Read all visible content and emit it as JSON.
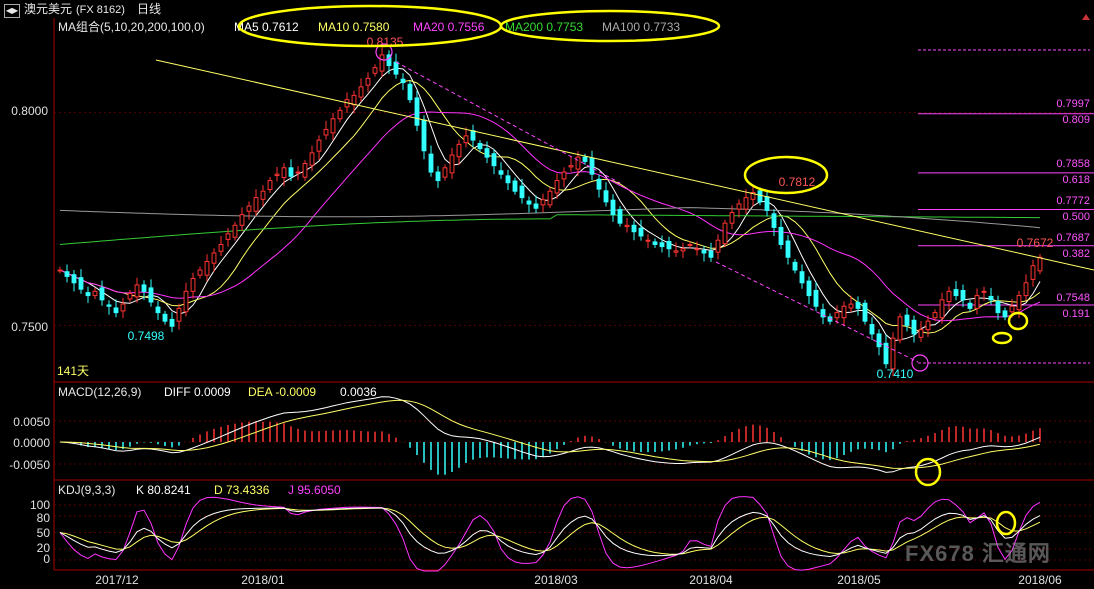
{
  "window": {
    "instrument": "澳元美元",
    "code": "(FX 8162)",
    "period": "日线"
  },
  "colors": {
    "up": "#ff3333",
    "down": "#33ffff",
    "ma5": "#ffffff",
    "ma10": "#ffff66",
    "ma20": "#ff33ff",
    "ma200": "#33cc33",
    "ma100": "#999999",
    "annot": "#ffff00"
  },
  "price_panel": {
    "legend_title": "MA组合(5,10,20,200,100,0)",
    "ma5": "MA5 0.7612",
    "ma10": "MA10 0.7580",
    "ma20": "MA20 0.7556",
    "ma200": "MA200 0.7753",
    "ma100": "MA100 0.7733",
    "bars_count": "141天",
    "y_ticks": [
      "0.8000",
      "0.7500"
    ],
    "high_label": "0.8135",
    "low1_label": "0.7498",
    "low2_label": "0.7410",
    "mid_high_label": "0.7812",
    "last_high_label": "0.7672"
  },
  "fib_levels": [
    {
      "price": "0.7997",
      "ratio": "0.809"
    },
    {
      "price": "0.7858",
      "ratio": "0.618"
    },
    {
      "price": "0.7772",
      "ratio": "0.500"
    },
    {
      "price": "0.7687",
      "ratio": "0.382"
    },
    {
      "price": "0.7548",
      "ratio": "0.191"
    }
  ],
  "macd_panel": {
    "title": "MACD(12,26,9)",
    "diff": "DIFF 0.0009",
    "dea": "DEA -0.0009",
    "macd": "0.0036",
    "y_ticks": [
      "0.0050",
      "0.0000",
      "-0.0050"
    ]
  },
  "kdj_panel": {
    "title": "KDJ(9,3,3)",
    "k": "K 80.8241",
    "d": "D 73.4336",
    "j": "J 95.6050",
    "y_ticks": [
      "100",
      "80",
      "50",
      "20",
      "0"
    ]
  },
  "x_axis": [
    "2017/12",
    "2018/01",
    "2018/03",
    "2018/04",
    "2018/05",
    "2018/06"
  ],
  "watermark": "FX678 汇通网",
  "chart_data": {
    "type": "candlestick",
    "title": "澳元美元(FX 8162) 日线",
    "ylim": [
      0.74,
      0.817
    ],
    "x_ticks": [
      "2017/12",
      "2018/01",
      "2018/03",
      "2018/04",
      "2018/05",
      "2018/06"
    ],
    "key_levels": [
      {
        "label": "0.8135",
        "value": 0.8135
      },
      {
        "label": "0.7812",
        "value": 0.7812
      },
      {
        "label": "0.7672",
        "value": 0.7672
      },
      {
        "label": "0.7498",
        "value": 0.7498
      },
      {
        "label": "0.7410",
        "value": 0.741
      }
    ],
    "close_series": [
      0.763,
      0.7615,
      0.76,
      0.7585,
      0.757,
      0.758,
      0.756,
      0.7545,
      0.753,
      0.755,
      0.7575,
      0.7595,
      0.758,
      0.7555,
      0.753,
      0.751,
      0.7498,
      0.754,
      0.758,
      0.761,
      0.763,
      0.765,
      0.767,
      0.769,
      0.7715,
      0.7735,
      0.776,
      0.778,
      0.78,
      0.7815,
      0.784,
      0.7855,
      0.787,
      0.785,
      0.786,
      0.788,
      0.7905,
      0.7935,
      0.796,
      0.7985,
      0.8005,
      0.803,
      0.804,
      0.806,
      0.808,
      0.8105,
      0.8135,
      0.811,
      0.809,
      0.807,
      0.803,
      0.797,
      0.791,
      0.786,
      0.784,
      0.787,
      0.79,
      0.7925,
      0.7945,
      0.7935,
      0.7915,
      0.7895,
      0.7875,
      0.7855,
      0.7835,
      0.7815,
      0.78,
      0.7785,
      0.7775,
      0.7795,
      0.7815,
      0.784,
      0.786,
      0.7875,
      0.7895,
      0.7885,
      0.7855,
      0.782,
      0.779,
      0.776,
      0.774,
      0.7735,
      0.772,
      0.771,
      0.77,
      0.769,
      0.7685,
      0.768,
      0.7675,
      0.768,
      0.769,
      0.768,
      0.767,
      0.766,
      0.77,
      0.774,
      0.7765,
      0.7785,
      0.78,
      0.7812,
      0.779,
      0.777,
      0.773,
      0.769,
      0.766,
      0.763,
      0.76,
      0.757,
      0.7545,
      0.752,
      0.751,
      0.753,
      0.7545,
      0.755,
      0.754,
      0.751,
      0.748,
      0.745,
      0.741,
      0.747,
      0.752,
      0.75,
      0.748,
      0.749,
      0.751,
      0.753,
      0.756,
      0.758,
      0.757,
      0.756,
      0.754,
      0.757,
      0.758,
      0.756,
      0.753,
      0.752,
      0.7545,
      0.757,
      0.76,
      0.764,
      0.766
    ]
  }
}
